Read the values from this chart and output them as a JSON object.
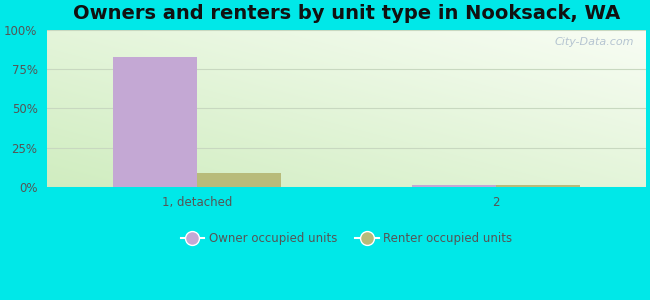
{
  "title": "Owners and renters by unit type in Nooksack, WA",
  "categories": [
    "1, detached",
    "2"
  ],
  "owner_values": [
    83,
    1.2
  ],
  "renter_values": [
    9,
    1.2
  ],
  "owner_color": "#c4a8d4",
  "renter_color": "#b8bb7a",
  "background_outer": "#00e8e8",
  "yticks": [
    0,
    25,
    50,
    75,
    100
  ],
  "ytick_labels": [
    "0%",
    "25%",
    "50%",
    "75%",
    "100%"
  ],
  "bar_width": 0.28,
  "legend_owner": "Owner occupied units",
  "legend_renter": "Renter occupied units",
  "title_fontsize": 14,
  "watermark": "City-Data.com",
  "grid_color": "#c8d8c0",
  "tick_color": "#555555"
}
